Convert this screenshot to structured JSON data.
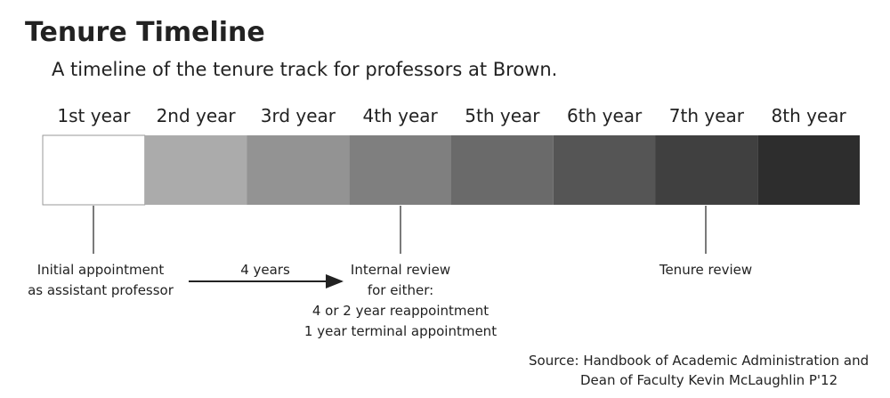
{
  "header": {
    "title": "Tenure Timeline",
    "subtitle": "A timeline of the tenure track for professors at Brown."
  },
  "timeline": {
    "years": [
      {
        "label": "1st year",
        "color": "#ffffff"
      },
      {
        "label": "2nd year",
        "color": "#ababab"
      },
      {
        "label": "3rd year",
        "color": "#939393"
      },
      {
        "label": "4th year",
        "color": "#7f7f7f"
      },
      {
        "label": "5th year",
        "color": "#6a6a6a"
      },
      {
        "label": "6th year",
        "color": "#555555"
      },
      {
        "label": "7th year",
        "color": "#404040"
      },
      {
        "label": "8th year",
        "color": "#2d2d2d"
      }
    ]
  },
  "annotations": {
    "initial": [
      "Initial appointment",
      "as assistant professor"
    ],
    "interval": "4 years",
    "internal_review": [
      "Internal review",
      "for either:",
      "4 or 2 year reappointment",
      "1 year terminal appointment"
    ],
    "tenure_review": "Tenure review"
  },
  "source": [
    "Source:  Handbook of Academic Administration and",
    "Dean of Faculty Kevin McLaughlin P'12"
  ]
}
